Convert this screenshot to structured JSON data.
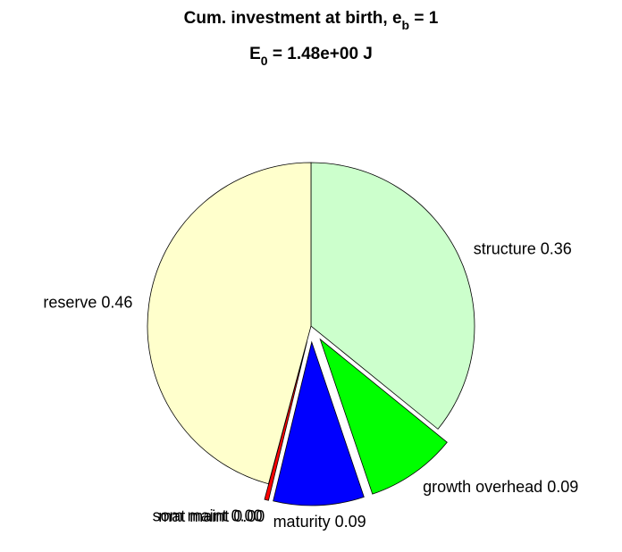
{
  "chart_data": {
    "type": "pie",
    "title": [
      "Cum. investment at birth, e",
      "b",
      " = 1"
    ],
    "subtitle": [
      "E",
      "0",
      " = 1.48e+00 J"
    ],
    "categories": [
      "structure",
      "growth overhead",
      "maturity",
      "mat maint",
      "som maint",
      "reserve"
    ],
    "values": [
      0.36,
      0.09,
      0.09,
      0.0,
      0.004,
      0.46
    ],
    "value_labels": [
      "0.36",
      "0.09",
      "0.09",
      "0.00",
      "0.00",
      "0.46"
    ],
    "colors": [
      "#ccffcc",
      "#00ff00",
      "#0000ff",
      "#800000",
      "#ff0000",
      "#ffffcc"
    ],
    "explode": [
      false,
      true,
      true,
      true,
      true,
      false
    ]
  }
}
